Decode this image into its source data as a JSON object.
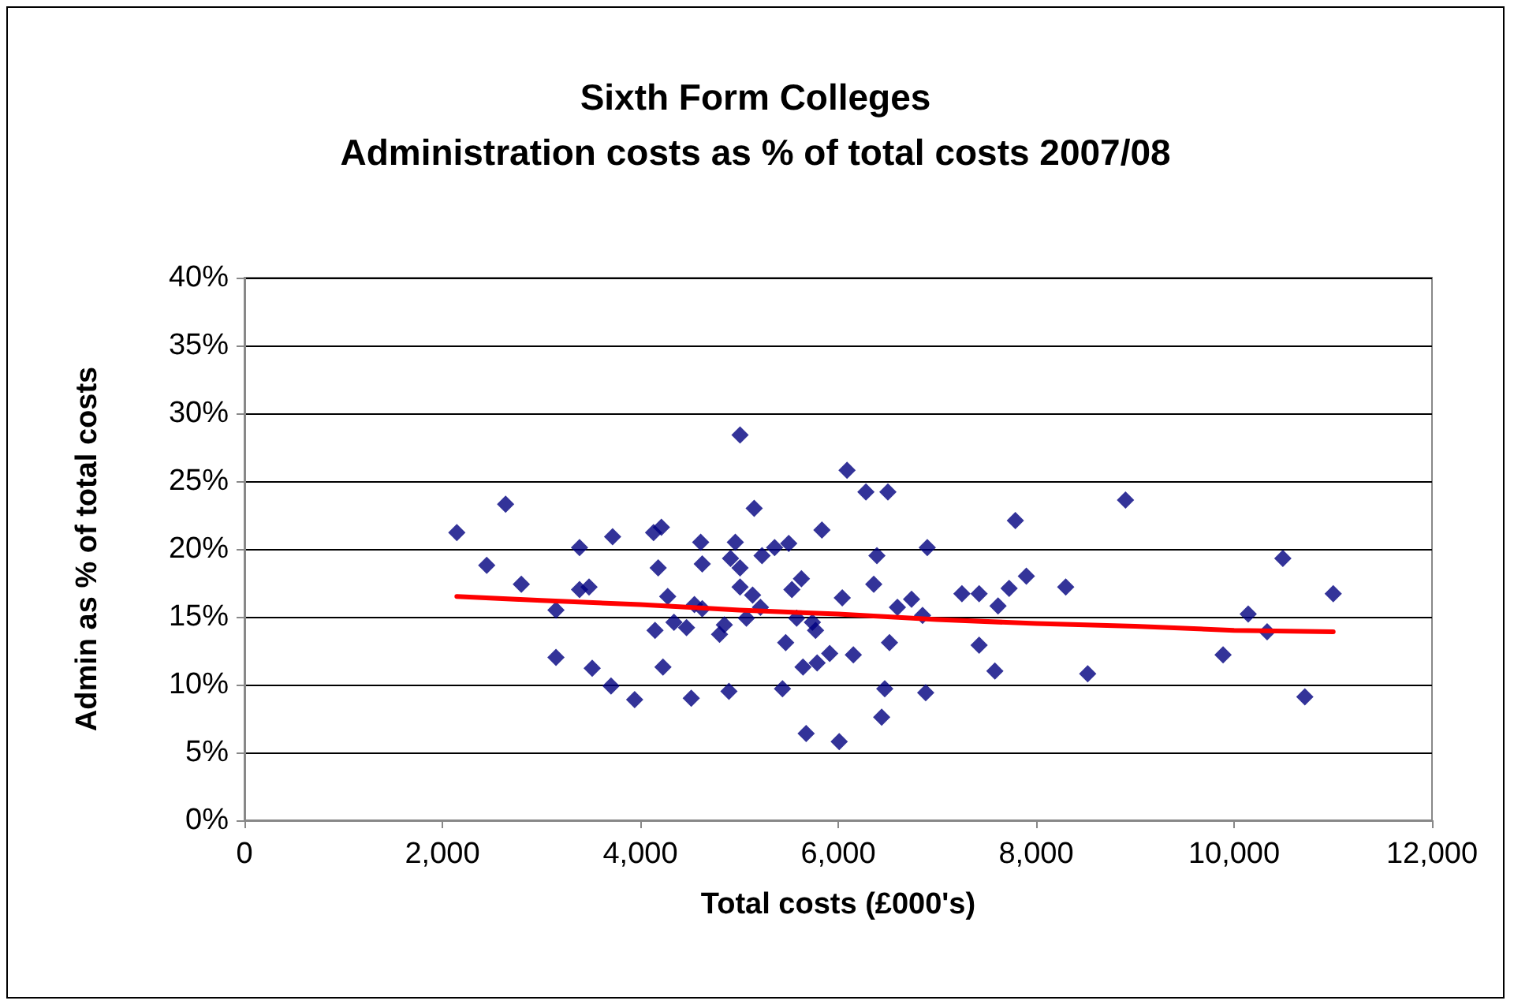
{
  "chart_data": {
    "type": "scatter",
    "title": "Sixth Form Colleges",
    "subtitle": "Administration costs as % of total costs 2007/08",
    "xlabel": "Total costs (£000's)",
    "ylabel": "Admin as % of total costs",
    "xlim": [
      0,
      12000
    ],
    "xticks": [
      0,
      {
        "value": 2000,
        "label": "2,000"
      },
      {
        "value": 4000,
        "label": "4,000"
      },
      {
        "value": 6000,
        "label": "6,000"
      },
      {
        "value": 8000,
        "label": "8,000"
      },
      {
        "value": 10000,
        "label": "10,000"
      },
      {
        "value": 12000,
        "label": "12,000"
      }
    ],
    "ylim": [
      0,
      40
    ],
    "yticks": [
      {
        "value": 0,
        "label": "0%"
      },
      {
        "value": 5,
        "label": "5%"
      },
      {
        "value": 10,
        "label": "10%"
      },
      {
        "value": 15,
        "label": "15%"
      },
      {
        "value": 20,
        "label": "20%"
      },
      {
        "value": 25,
        "label": "25%"
      },
      {
        "value": 30,
        "label": "30%"
      },
      {
        "value": 35,
        "label": "35%"
      },
      {
        "value": 40,
        "label": "40%"
      }
    ],
    "grid": "y",
    "marker": "diamond",
    "series": [
      {
        "color": "#000080",
        "x": [
          2146,
          2448,
          2639,
          2798,
          3148,
          3148,
          3386,
          3386,
          3482,
          3514,
          3720,
          3704,
          3943,
          4134,
          4181,
          4213,
          4149,
          4229,
          4277,
          4340,
          4515,
          4467,
          4547,
          4610,
          4626,
          4626,
          4801,
          4849,
          4896,
          4912,
          5008,
          4960,
          5008,
          5008,
          5072,
          5135,
          5151,
          5230,
          5214,
          5357,
          5500,
          5469,
          5437,
          5532,
          5580,
          5628,
          5644,
          5739,
          5771,
          5787,
          5676,
          5835,
          5914,
          6089,
          6041,
          6010,
          6153,
          6280,
          6502,
          6391,
          6359,
          6439,
          6470,
          6518,
          6598,
          6741,
          6852,
          6900,
          6884,
          7250,
          7424,
          7424,
          7583,
          7615,
          7727,
          7790,
          7901,
          8299,
          8521,
          8903,
          9889,
          10143,
          10334,
          10493,
          10715,
          11002
        ],
        "values": [
          21.2,
          18.8,
          23.3,
          17.4,
          15.5,
          12.0,
          20.1,
          17.0,
          17.2,
          11.2,
          20.9,
          9.9,
          8.9,
          21.2,
          18.6,
          21.6,
          14.0,
          11.3,
          16.5,
          14.6,
          9.0,
          14.2,
          15.9,
          20.5,
          18.9,
          15.6,
          13.7,
          14.4,
          9.5,
          19.3,
          28.4,
          20.5,
          18.6,
          17.2,
          14.9,
          16.6,
          23.0,
          19.5,
          15.7,
          20.1,
          20.4,
          13.1,
          9.7,
          17.0,
          14.9,
          17.8,
          11.3,
          14.6,
          14.0,
          11.6,
          6.4,
          21.4,
          12.3,
          25.8,
          16.4,
          5.8,
          12.2,
          24.2,
          24.2,
          19.5,
          17.4,
          7.6,
          9.7,
          13.1,
          15.7,
          16.3,
          15.1,
          20.1,
          9.4,
          16.7,
          16.7,
          12.9,
          11.0,
          15.8,
          17.1,
          22.1,
          18.0,
          17.2,
          10.8,
          23.6,
          12.2,
          15.2,
          13.9,
          19.3,
          9.1,
          16.7
        ]
      },
      {
        "type": "line",
        "color": "#ff0000",
        "marker": "none",
        "line_style": "solid",
        "x": [
          2146,
          3000,
          4000,
          5000,
          6000,
          7000,
          8000,
          9000,
          10000,
          11002
        ],
        "values": [
          16.5,
          16.2,
          15.9,
          15.5,
          15.2,
          14.8,
          14.5,
          14.3,
          14.0,
          13.9
        ]
      }
    ]
  }
}
